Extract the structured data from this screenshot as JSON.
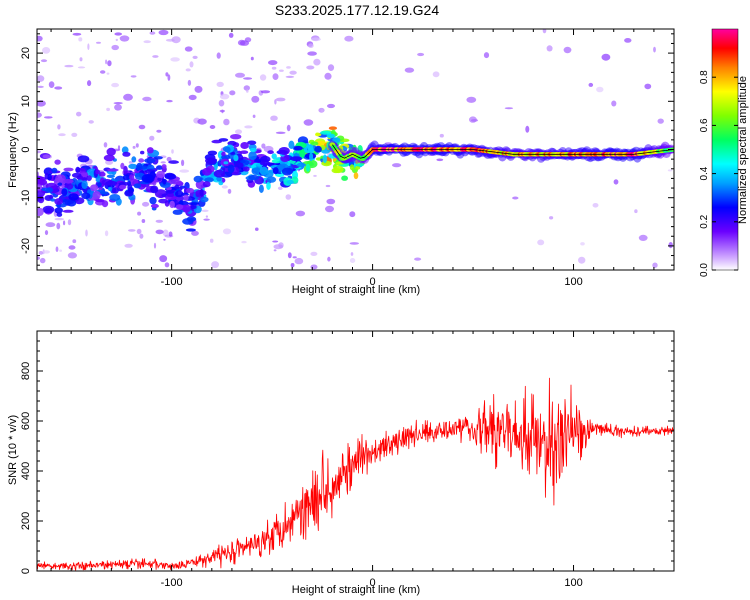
{
  "title": "S233.2025.177.12.19.G24",
  "chart_data": [
    {
      "type": "heatmap",
      "title": "S233.2025.177.12.19.G24",
      "xlabel": "Height of straight line (km)",
      "ylabel": "Frequency (Hz)",
      "xlim": [
        -167,
        150
      ],
      "ylim": [
        -25,
        25
      ],
      "xticks": [
        -100,
        0,
        100
      ],
      "yticks": [
        -20,
        -10,
        0,
        10,
        20
      ],
      "colorbar": {
        "label": "Normalized spectral amplitude",
        "range": [
          0,
          1
        ],
        "ticks": [
          "0.0",
          "0.2",
          "0.4",
          "0.6",
          "0.8"
        ],
        "colors": [
          "#ffffff",
          "#b266ff",
          "#0000ff",
          "#00ffff",
          "#00ff00",
          "#ffff00",
          "#ff0000",
          "#ff00a0"
        ]
      },
      "ridge": {
        "x": [
          -167,
          -150,
          -130,
          -110,
          -100,
          -90,
          -80,
          -70,
          -60,
          -50,
          -40,
          -30,
          -20,
          -15,
          -10,
          -5,
          0,
          10,
          30,
          50,
          70,
          90,
          110,
          130,
          150
        ],
        "y": [
          -8,
          -8,
          -7,
          -6,
          -8,
          -12,
          -4,
          -1,
          -3,
          -5,
          -3,
          0,
          1,
          -2,
          -1,
          -2,
          0,
          0,
          0,
          0,
          -1,
          -1,
          -1,
          -1,
          0
        ],
        "amplitude": [
          0.25,
          0.3,
          0.3,
          0.3,
          0.25,
          0.3,
          0.35,
          0.35,
          0.35,
          0.4,
          0.4,
          0.6,
          0.75,
          0.7,
          0.7,
          0.6,
          0.9,
          0.95,
          0.95,
          0.9,
          0.8,
          0.85,
          0.9,
          0.95,
          0.6
        ]
      }
    },
    {
      "type": "line",
      "xlabel": "Height of straight line (km)",
      "ylabel": "SNR (10 * v/v)",
      "xlim": [
        -167,
        150
      ],
      "ylim": [
        0,
        960
      ],
      "xticks": [
        -100,
        0,
        100
      ],
      "yticks": [
        0,
        200,
        400,
        600,
        800
      ],
      "color": "#ff0000",
      "series": [
        {
          "x": [
            -167,
            -150,
            -130,
            -110,
            -100,
            -90,
            -80,
            -70,
            -60,
            -50,
            -40,
            -30,
            -20,
            -10,
            0,
            10,
            20,
            30,
            40,
            50,
            60,
            70,
            80,
            90,
            100,
            110,
            120,
            130,
            140,
            150
          ],
          "y": [
            20,
            20,
            25,
            30,
            20,
            30,
            60,
            80,
            100,
            150,
            210,
            290,
            360,
            420,
            470,
            510,
            540,
            560,
            575,
            580,
            560,
            550,
            520,
            500,
            560,
            570,
            560,
            560,
            560,
            560
          ],
          "noise": [
            20,
            20,
            25,
            30,
            20,
            30,
            50,
            60,
            70,
            90,
            140,
            170,
            170,
            130,
            80,
            70,
            70,
            60,
            60,
            90,
            220,
            160,
            280,
            300,
            200,
            40,
            30,
            25,
            25,
            25
          ]
        }
      ]
    }
  ]
}
